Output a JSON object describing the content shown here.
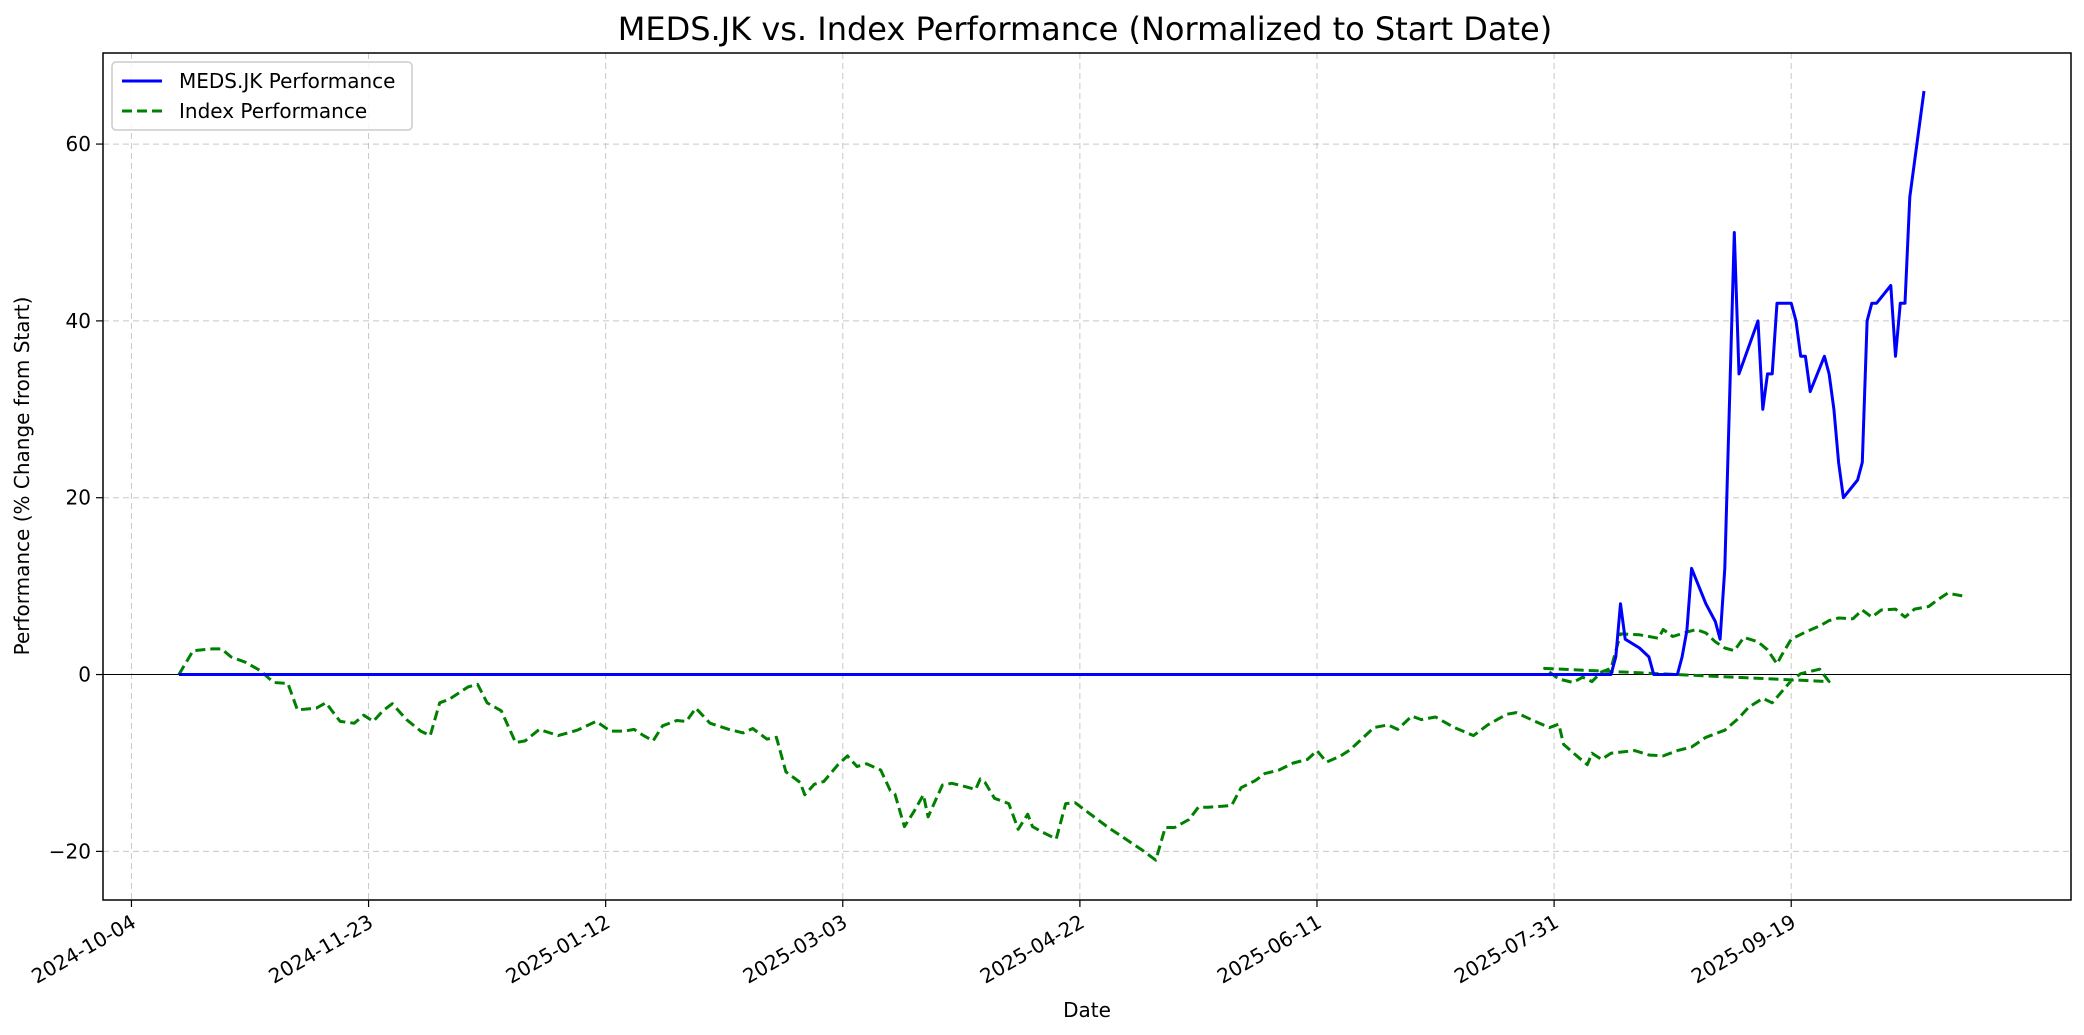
{
  "chart_data": {
    "type": "line",
    "title": "MEDS.JK vs. Index Performance (Normalized to Start Date)",
    "xlabel": "Date",
    "ylabel": "Performance (% Change from Start)",
    "x_type": "date",
    "xlim": [
      "2024-09-28",
      "2025-11-17"
    ],
    "ylim": [
      -25.5,
      70.3
    ],
    "xticks": [
      "2024-10-04",
      "2024-11-23",
      "2025-01-12",
      "2025-03-03",
      "2025-04-22",
      "2025-06-11",
      "2025-07-31",
      "2025-09-19"
    ],
    "yticks": [
      -20,
      0,
      20,
      40,
      60
    ],
    "ytick_labels": [
      "−20",
      "0",
      "20",
      "40",
      "60"
    ],
    "grid": true,
    "zero_line": true,
    "legend_position": "top-left",
    "series": [
      {
        "name": "MEDS.JK Performance",
        "color": "#0000ff",
        "style": "solid",
        "points": [
          [
            "2024-10-14",
            0
          ],
          [
            "2025-08-12",
            0
          ],
          [
            "2025-08-13",
            2
          ],
          [
            "2025-08-14",
            8
          ],
          [
            "2025-08-15",
            4
          ],
          [
            "2025-08-18",
            3
          ],
          [
            "2025-08-20",
            2
          ],
          [
            "2025-08-21",
            0
          ],
          [
            "2025-08-25",
            0
          ],
          [
            "2025-08-26",
            0
          ],
          [
            "2025-08-27",
            2
          ],
          [
            "2025-08-28",
            5
          ],
          [
            "2025-08-29",
            12
          ],
          [
            "2025-09-01",
            8
          ],
          [
            "2025-09-03",
            6
          ],
          [
            "2025-09-04",
            4
          ],
          [
            "2025-09-05",
            12
          ],
          [
            "2025-09-07",
            50
          ],
          [
            "2025-09-08",
            34
          ],
          [
            "2025-09-12",
            40
          ],
          [
            "2025-09-13",
            30
          ],
          [
            "2025-09-14",
            34
          ],
          [
            "2025-09-15",
            34
          ],
          [
            "2025-09-16",
            42
          ],
          [
            "2025-09-19",
            42
          ],
          [
            "2025-09-20",
            40
          ],
          [
            "2025-09-21",
            36
          ],
          [
            "2025-09-22",
            36
          ],
          [
            "2025-09-23",
            32
          ],
          [
            "2025-09-26",
            36
          ],
          [
            "2025-09-27",
            34
          ],
          [
            "2025-09-28",
            30
          ],
          [
            "2025-09-29",
            24
          ],
          [
            "2025-09-30",
            20
          ],
          [
            "2025-10-03",
            22
          ],
          [
            "2025-10-04",
            24
          ],
          [
            "2025-10-05",
            40
          ],
          [
            "2025-10-06",
            42
          ],
          [
            "2025-10-07",
            42
          ],
          [
            "2025-10-10",
            44
          ],
          [
            "2025-10-11",
            36
          ],
          [
            "2025-10-12",
            42
          ],
          [
            "2025-10-13",
            42
          ],
          [
            "2025-10-14",
            54
          ],
          [
            "2025-10-17",
            66
          ]
        ]
      },
      {
        "name": "Index Performance",
        "color": "#008000",
        "style": "dashed",
        "points": [
          [
            "2024-10-14",
            0
          ],
          [
            "2024-10-17",
            2.7
          ],
          [
            "2024-10-21",
            2.9
          ],
          [
            "2024-10-23",
            2.9
          ],
          [
            "2024-10-25",
            2
          ],
          [
            "2024-10-28",
            1.4
          ],
          [
            "2024-10-31",
            0.5
          ],
          [
            "2024-11-03",
            -0.9
          ],
          [
            "2024-11-06",
            -1
          ],
          [
            "2024-11-08",
            -4
          ],
          [
            "2024-11-12",
            -3.8
          ],
          [
            "2024-11-14",
            -3.2
          ],
          [
            "2024-11-17",
            -5.3
          ],
          [
            "2024-11-20",
            -5.5
          ],
          [
            "2024-11-22",
            -4.6
          ],
          [
            "2024-11-24",
            -5.3
          ],
          [
            "2024-11-26",
            -4.1
          ],
          [
            "2024-11-28",
            -3.3
          ],
          [
            "2024-12-01",
            -5.1
          ],
          [
            "2024-12-04",
            -6.4
          ],
          [
            "2024-12-06",
            -6.9
          ],
          [
            "2024-12-08",
            -3.2
          ],
          [
            "2024-12-10",
            -2.8
          ],
          [
            "2024-12-14",
            -1.4
          ],
          [
            "2024-12-16",
            -1.1
          ],
          [
            "2024-12-18",
            -3.2
          ],
          [
            "2024-12-21",
            -4.1
          ],
          [
            "2024-12-24",
            -7.7
          ],
          [
            "2024-12-26",
            -7.5
          ],
          [
            "2024-12-29",
            -6.2
          ],
          [
            "2025-01-02",
            -6.9
          ],
          [
            "2025-01-06",
            -6.3
          ],
          [
            "2025-01-10",
            -5.3
          ],
          [
            "2025-01-13",
            -6.4
          ],
          [
            "2025-01-16",
            -6.4
          ],
          [
            "2025-01-18",
            -6.2
          ],
          [
            "2025-01-20",
            -6.9
          ],
          [
            "2025-01-22",
            -7.5
          ],
          [
            "2025-01-24",
            -5.8
          ],
          [
            "2025-01-27",
            -5.2
          ],
          [
            "2025-01-29",
            -5.3
          ],
          [
            "2025-01-31",
            -3.8
          ],
          [
            "2025-02-03",
            -5.5
          ],
          [
            "2025-02-07",
            -6.2
          ],
          [
            "2025-02-10",
            -6.6
          ],
          [
            "2025-02-12",
            -6.1
          ],
          [
            "2025-02-15",
            -7.3
          ],
          [
            "2025-02-17",
            -7.1
          ],
          [
            "2025-02-19",
            -11
          ],
          [
            "2025-02-22",
            -12.2
          ],
          [
            "2025-02-23",
            -13.6
          ],
          [
            "2025-02-25",
            -12.4
          ],
          [
            "2025-02-27",
            -12.1
          ],
          [
            "2025-03-02",
            -10.2
          ],
          [
            "2025-03-04",
            -9.2
          ],
          [
            "2025-03-06",
            -10.4
          ],
          [
            "2025-03-08",
            -10.1
          ],
          [
            "2025-03-11",
            -10.8
          ],
          [
            "2025-03-13",
            -13.1
          ],
          [
            "2025-03-14",
            -13.5
          ],
          [
            "2025-03-16",
            -17.2
          ],
          [
            "2025-03-18",
            -15.5
          ],
          [
            "2025-03-20",
            -13.6
          ],
          [
            "2025-03-21",
            -16.1
          ],
          [
            "2025-03-24",
            -12.5
          ],
          [
            "2025-03-26",
            -12.3
          ],
          [
            "2025-03-29",
            -12.7
          ],
          [
            "2025-03-31",
            -13
          ],
          [
            "2025-04-01",
            -11.8
          ],
          [
            "2025-04-02",
            -12.2
          ],
          [
            "2025-04-04",
            -14
          ],
          [
            "2025-04-07",
            -14.6
          ],
          [
            "2025-04-09",
            -17.5
          ],
          [
            "2025-04-11",
            -15.8
          ],
          [
            "2025-04-12",
            -17.2
          ],
          [
            "2025-04-14",
            -17.8
          ],
          [
            "2025-04-17",
            -18.6
          ],
          [
            "2025-04-19",
            -14.6
          ],
          [
            "2025-04-21",
            -14.5
          ],
          [
            "2025-04-28",
            -17.3
          ],
          [
            "2025-05-05",
            -19.8
          ],
          [
            "2025-05-08",
            -21
          ],
          [
            "2025-05-10",
            -17.3
          ],
          [
            "2025-05-12",
            -17.3
          ],
          [
            "2025-05-15",
            -16.4
          ],
          [
            "2025-05-17",
            -15
          ],
          [
            "2025-05-19",
            -15
          ],
          [
            "2025-05-22",
            -14.9
          ],
          [
            "2025-05-24",
            -14.8
          ],
          [
            "2025-05-26",
            -12.8
          ],
          [
            "2025-05-29",
            -12
          ],
          [
            "2025-05-31",
            -11.2
          ],
          [
            "2025-06-03",
            -10.8
          ],
          [
            "2025-06-06",
            -10
          ],
          [
            "2025-06-09",
            -9.6
          ],
          [
            "2025-06-11",
            -8.6
          ],
          [
            "2025-06-13",
            -9.9
          ],
          [
            "2025-06-16",
            -9.2
          ],
          [
            "2025-06-18",
            -8.5
          ],
          [
            "2025-06-20",
            -7.5
          ],
          [
            "2025-06-23",
            -6
          ],
          [
            "2025-06-26",
            -5.7
          ],
          [
            "2025-06-28",
            -6.2
          ],
          [
            "2025-07-01",
            -4.7
          ],
          [
            "2025-07-03",
            -5.1
          ],
          [
            "2025-07-06",
            -4.8
          ],
          [
            "2025-07-10",
            -6
          ],
          [
            "2025-07-14",
            -6.9
          ],
          [
            "2025-07-17",
            -5.7
          ],
          [
            "2025-07-21",
            -4.5
          ],
          [
            "2025-07-23",
            -4.3
          ],
          [
            "2025-07-27",
            -5.3
          ],
          [
            "2025-07-30",
            -6
          ],
          [
            "2025-08-01",
            -5.6
          ],
          [
            "2025-08-02",
            -7.9
          ],
          [
            "2025-08-05",
            -9.3
          ],
          [
            "2025-08-07",
            -10.2
          ],
          [
            "2025-08-08",
            -8.9
          ],
          [
            "2025-08-10",
            -9.6
          ],
          [
            "2025-08-12",
            -8.9
          ],
          [
            "2025-08-17",
            -8.6
          ],
          [
            "2025-08-20",
            -9.1
          ],
          [
            "2025-08-23",
            -9.2
          ],
          [
            "2025-08-26",
            -8.6
          ],
          [
            "2025-08-29",
            -8.2
          ],
          [
            "2025-09-01",
            -7.1
          ],
          [
            "2025-09-05",
            -6.3
          ],
          [
            "2025-09-08",
            -4.9
          ],
          [
            "2025-09-10",
            -3.7
          ],
          [
            "2025-09-13",
            -2.7
          ],
          [
            "2025-09-15",
            -3.2
          ],
          [
            "2025-09-19",
            -0.7
          ],
          [
            "2025-09-21",
            0.1
          ],
          [
            "2025-09-25",
            0.6
          ],
          [
            "2025-09-27",
            -0.8
          ],
          [
            "2025-07-29",
            0.7
          ],
          [
            "2025-08-01",
            -0.5
          ],
          [
            "2025-08-04",
            -0.9
          ],
          [
            "2025-08-06",
            -0.3
          ],
          [
            "2025-08-08",
            -0.8
          ],
          [
            "2025-08-10",
            0.3
          ],
          [
            "2025-08-12",
            0.7
          ],
          [
            "2025-08-14",
            4.6
          ],
          [
            "2025-08-18",
            4.5
          ],
          [
            "2025-08-20",
            4.3
          ],
          [
            "2025-08-22",
            4.1
          ],
          [
            "2025-08-23",
            5.1
          ],
          [
            "2025-08-25",
            4.3
          ],
          [
            "2025-08-28",
            4.8
          ],
          [
            "2025-08-30",
            5.1
          ],
          [
            "2025-09-01",
            4.7
          ],
          [
            "2025-09-03",
            3.7
          ],
          [
            "2025-09-05",
            3
          ],
          [
            "2025-09-07",
            2.7
          ],
          [
            "2025-09-09",
            4.2
          ],
          [
            "2025-09-12",
            3.7
          ],
          [
            "2025-09-14",
            2.8
          ],
          [
            "2025-09-16",
            1.2
          ],
          [
            "2025-09-17",
            2.2
          ],
          [
            "2025-09-19",
            4
          ],
          [
            "2025-09-22",
            4.8
          ],
          [
            "2025-09-25",
            5.5
          ],
          [
            "2025-09-27",
            6.1
          ],
          [
            "2025-09-29",
            6.4
          ],
          [
            "2025-10-02",
            6.3
          ],
          [
            "2025-10-04",
            7.3
          ],
          [
            "2025-10-06",
            6.5
          ],
          [
            "2025-10-08",
            7.3
          ],
          [
            "2025-10-11",
            7.4
          ],
          [
            "2025-10-13",
            6.5
          ],
          [
            "2025-10-15",
            7.4
          ],
          [
            "2025-10-18",
            7.7
          ],
          [
            "2025-10-20",
            8.5
          ],
          [
            "2025-10-22",
            9.2
          ],
          [
            "2025-10-26",
            8.8
          ]
        ]
      }
    ]
  }
}
